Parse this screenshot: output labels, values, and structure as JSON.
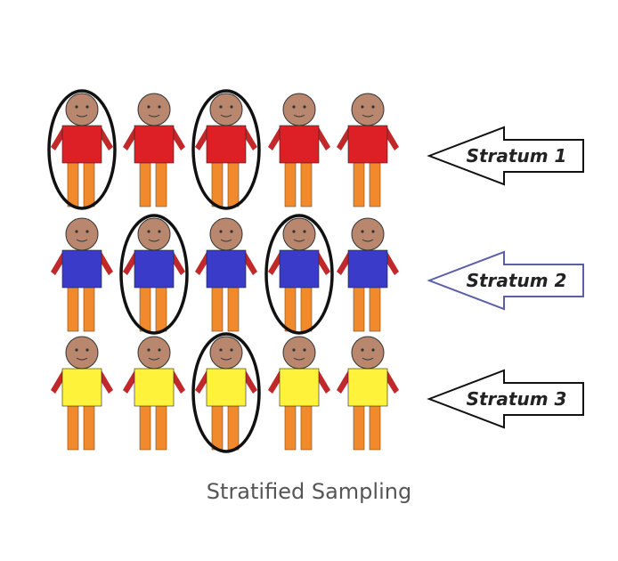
{
  "caption": "Stratified Sampling",
  "strata": [
    {
      "label": "Stratum 1",
      "shirt_color": "#dd1f26",
      "arrow_stroke": "#111111",
      "selected": [
        true,
        false,
        true,
        false,
        false
      ]
    },
    {
      "label": "Stratum 2",
      "shirt_color": "#3a3bc8",
      "arrow_stroke": "#5a5fa8",
      "selected": [
        false,
        true,
        false,
        true,
        false
      ]
    },
    {
      "label": "Stratum 3",
      "shirt_color": "#fff23a",
      "arrow_stroke": "#111111",
      "selected": [
        false,
        false,
        true,
        false,
        false
      ]
    }
  ],
  "colors": {
    "skin": "#b9876e",
    "legs": "#f08a2c",
    "arms": "#c0282a",
    "selection_ring": "#111111"
  }
}
